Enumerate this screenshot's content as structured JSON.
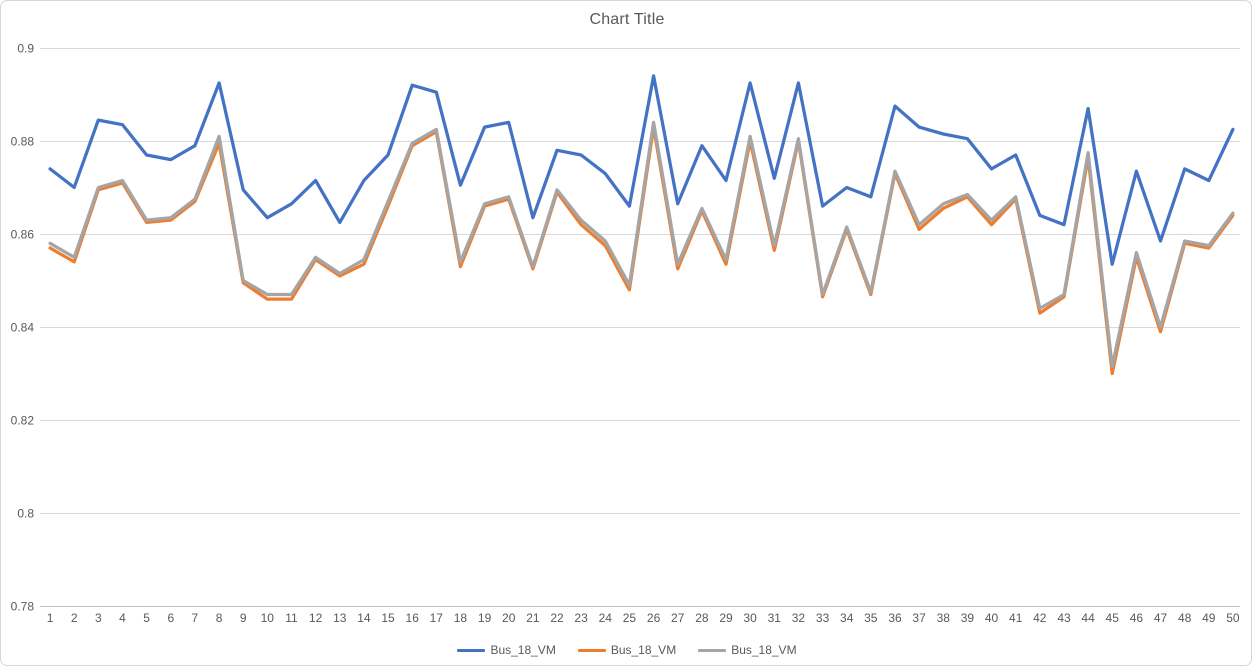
{
  "chart": {
    "title": "Chart Title"
  },
  "frame": {
    "background": "#FFFFFF",
    "border_color": "#D7D7D7",
    "gridline_color": "#D9D9D9",
    "axis_line_color": "#BFBFBF",
    "text_color": "#595959"
  },
  "chart_data": {
    "type": "line",
    "title": "Chart Title",
    "x": [
      1,
      2,
      3,
      4,
      5,
      6,
      7,
      8,
      9,
      10,
      11,
      12,
      13,
      14,
      15,
      16,
      17,
      18,
      19,
      20,
      21,
      22,
      23,
      24,
      25,
      26,
      27,
      28,
      29,
      30,
      31,
      32,
      33,
      34,
      35,
      36,
      37,
      38,
      39,
      40,
      41,
      42,
      43,
      44,
      45,
      46,
      47,
      48,
      49,
      50
    ],
    "ylim": [
      0.78,
      0.9
    ],
    "ytick_labels": [
      "0.78",
      "0.8",
      "0.82",
      "0.84",
      "0.86",
      "0.88",
      "0.9"
    ],
    "grid": true,
    "legend_position": "bottom",
    "series": [
      {
        "name": "Bus_18_VM",
        "color": "#4472C4",
        "values": [
          0.874,
          0.87,
          0.8845,
          0.8835,
          0.877,
          0.876,
          0.879,
          0.8925,
          0.8695,
          0.8635,
          0.8665,
          0.8715,
          0.8625,
          0.8715,
          0.877,
          0.892,
          0.8905,
          0.8705,
          0.883,
          0.884,
          0.8635,
          0.878,
          0.877,
          0.873,
          0.866,
          0.894,
          0.8665,
          0.879,
          0.8715,
          0.8925,
          0.872,
          0.8925,
          0.866,
          0.87,
          0.868,
          0.8875,
          0.883,
          0.8815,
          0.8805,
          0.874,
          0.877,
          0.864,
          0.862,
          0.887,
          0.8535,
          0.8735,
          0.8585,
          0.874,
          0.8715,
          0.8825
        ]
      },
      {
        "name": "Bus_18_VM",
        "color": "#ED7D31",
        "values": [
          0.857,
          0.854,
          0.8695,
          0.871,
          0.8625,
          0.863,
          0.867,
          0.8795,
          0.8495,
          0.846,
          0.846,
          0.8545,
          0.851,
          0.8535,
          0.866,
          0.879,
          0.882,
          0.853,
          0.866,
          0.8675,
          0.8525,
          0.869,
          0.862,
          0.8575,
          0.848,
          0.883,
          0.8525,
          0.865,
          0.8535,
          0.88,
          0.8565,
          0.88,
          0.8465,
          0.861,
          0.847,
          0.873,
          0.861,
          0.8655,
          0.868,
          0.862,
          0.8675,
          0.843,
          0.8465,
          0.8765,
          0.83,
          0.855,
          0.839,
          0.858,
          0.857,
          0.864
        ]
      },
      {
        "name": "Bus_18_VM",
        "color": "#A5A5A5",
        "values": [
          0.858,
          0.855,
          0.87,
          0.8715,
          0.863,
          0.8635,
          0.8675,
          0.881,
          0.85,
          0.847,
          0.847,
          0.855,
          0.8515,
          0.8545,
          0.867,
          0.8795,
          0.8825,
          0.854,
          0.8665,
          0.868,
          0.853,
          0.8695,
          0.863,
          0.8585,
          0.849,
          0.884,
          0.8535,
          0.8655,
          0.8545,
          0.881,
          0.8575,
          0.8805,
          0.847,
          0.8615,
          0.8475,
          0.8735,
          0.862,
          0.8665,
          0.8685,
          0.863,
          0.868,
          0.844,
          0.847,
          0.8775,
          0.8315,
          0.856,
          0.84,
          0.8585,
          0.8575,
          0.8645
        ]
      }
    ]
  }
}
